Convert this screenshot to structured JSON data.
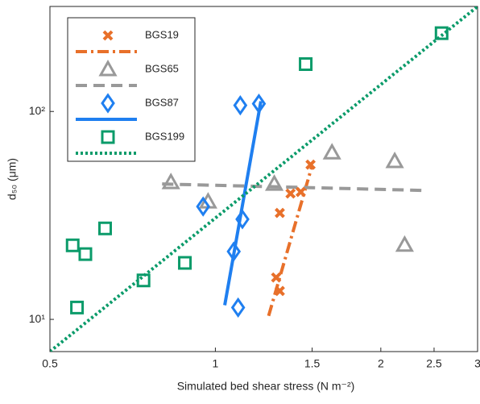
{
  "chart_data": {
    "type": "scatter",
    "x_label": "Simulated bed shear stress (N m⁻²)",
    "y_label": "d₅₀ (μm)",
    "xscale": "log",
    "yscale": "log",
    "xlim": [
      0.5,
      3
    ],
    "ylim": [
      7,
      320
    ],
    "xticks": [
      0.5,
      1,
      1.5,
      2,
      2.5,
      3
    ],
    "yticks": [
      {
        "value": 10,
        "label": "10¹"
      },
      {
        "value": 100,
        "label": "10²"
      }
    ],
    "legend": "upper left",
    "series": [
      {
        "name": "BGS19",
        "color": "#e8702a",
        "marker": "x",
        "line_style": "dashdot",
        "x": [
          1.49,
          1.37,
          1.43,
          1.31,
          1.29,
          1.31
        ],
        "y": [
          55.5,
          40.3,
          41,
          32.5,
          15.9,
          13.7
        ],
        "fit_x": [
          1.25,
          1.5
        ],
        "fit_y": [
          10.4,
          55
        ]
      },
      {
        "name": "BGS65",
        "color": "#999999",
        "marker": "triangle",
        "line_style": "dashed",
        "x": [
          0.83,
          0.97,
          1.28,
          1.63,
          2.12,
          2.21
        ],
        "y": [
          45.6,
          36.8,
          44.8,
          63.4,
          57.6,
          22.8
        ],
        "fit_x": [
          0.8,
          2.4
        ],
        "fit_y": [
          44.8,
          41.7
        ]
      },
      {
        "name": "BGS87",
        "color": "#1f7ff0",
        "marker": "diamond",
        "line_style": "solid",
        "x": [
          1.11,
          1.2,
          0.95,
          1.12,
          1.08,
          1.1
        ],
        "y": [
          107,
          109,
          34.9,
          30.3,
          21.2,
          11.4
        ],
        "fit_x": [
          1.04,
          1.21
        ],
        "fit_y": [
          11.7,
          112
        ]
      },
      {
        "name": "BGS199",
        "color": "#0b9b6a",
        "marker": "square",
        "line_style": "dotted",
        "x": [
          2.58,
          1.46,
          0.63,
          0.55,
          0.58,
          0.88,
          0.74,
          0.56
        ],
        "y": [
          238,
          169,
          27.4,
          22.7,
          20.6,
          18.7,
          15.4,
          11.4
        ],
        "fit_x": [
          0.5,
          3
        ],
        "fit_y": [
          7,
          320
        ]
      }
    ]
  }
}
